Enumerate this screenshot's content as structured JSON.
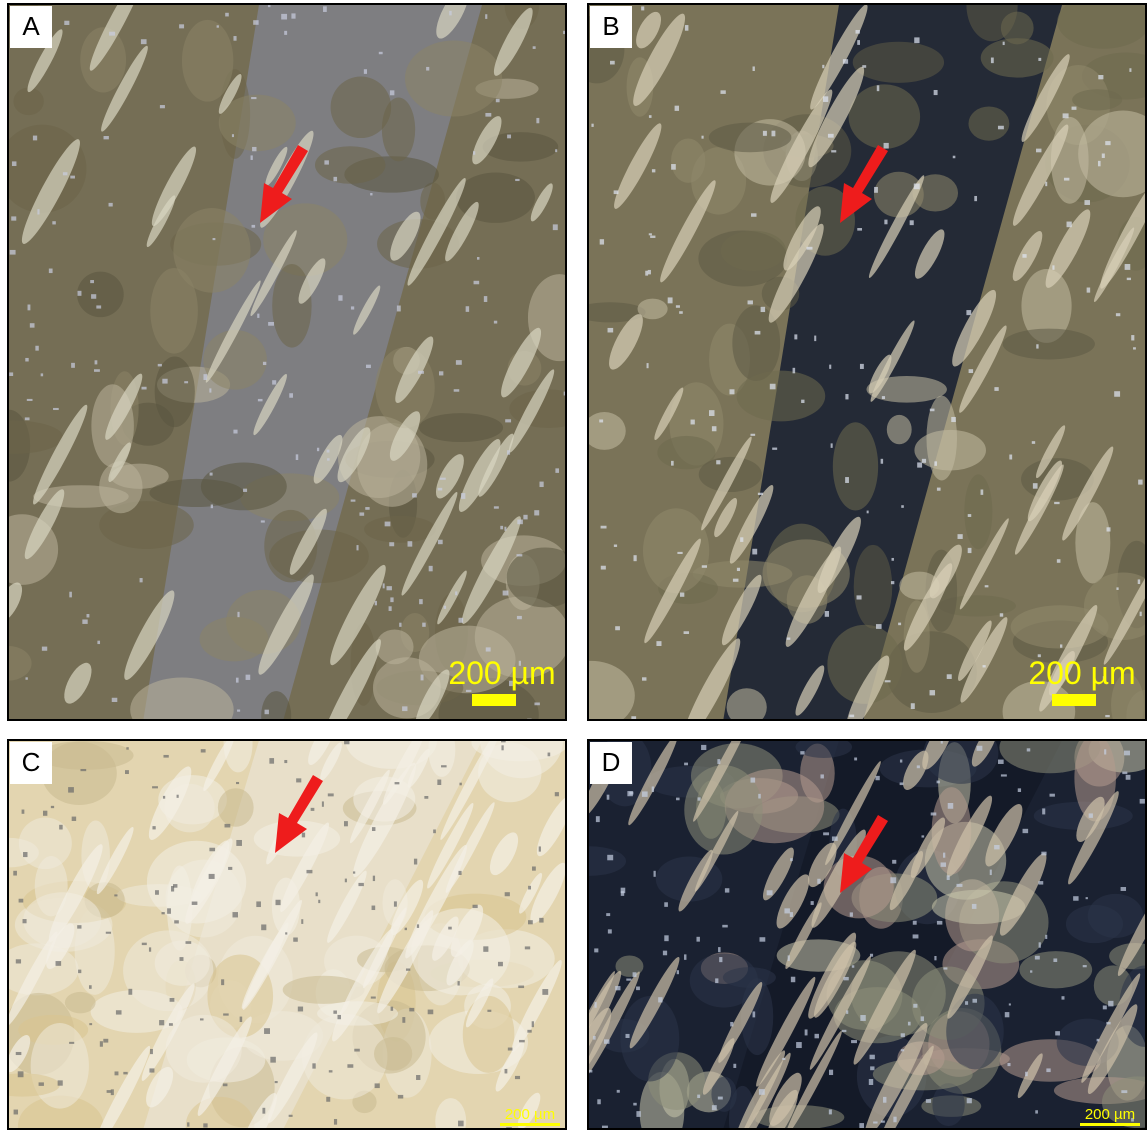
{
  "panels": [
    {
      "label": "A",
      "scale_bar": "200 µm"
    },
    {
      "label": "B",
      "scale_bar": "200 µm"
    },
    {
      "label": "C",
      "scale_bar": "200 µm"
    },
    {
      "label": "D",
      "scale_bar": "200 µm"
    }
  ]
}
